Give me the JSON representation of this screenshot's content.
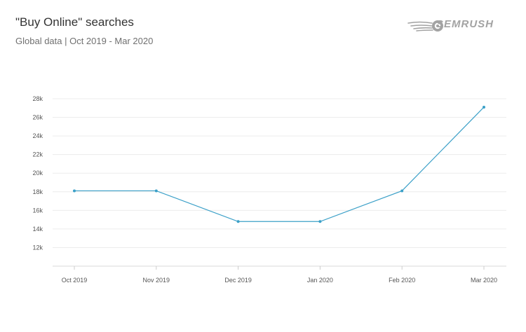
{
  "header": {
    "title": "\"Buy Online\" searches",
    "subtitle": "Global data | Oct 2019 - Mar 2020"
  },
  "brand": {
    "logo_text": "SEMRUSH",
    "logo_icon": "semrush-fireball-icon",
    "color": "#a3a3a3"
  },
  "chart_data": {
    "type": "line",
    "categories": [
      "Oct 2019",
      "Nov 2019",
      "Dec 2019",
      "Jan 2020",
      "Feb 2020",
      "Mar 2020"
    ],
    "series": [
      {
        "values": [
          18100,
          18100,
          14800,
          14800,
          18100,
          27100
        ],
        "color": "#3ba0c8"
      }
    ],
    "y_ticks": [
      "12k",
      "14k",
      "16k",
      "18k",
      "20k",
      "22k",
      "24k",
      "26k",
      "28k"
    ],
    "ylim": [
      10000,
      28000
    ],
    "grid": true,
    "title": "\"Buy Online\" searches",
    "xlabel": "",
    "ylabel": ""
  }
}
